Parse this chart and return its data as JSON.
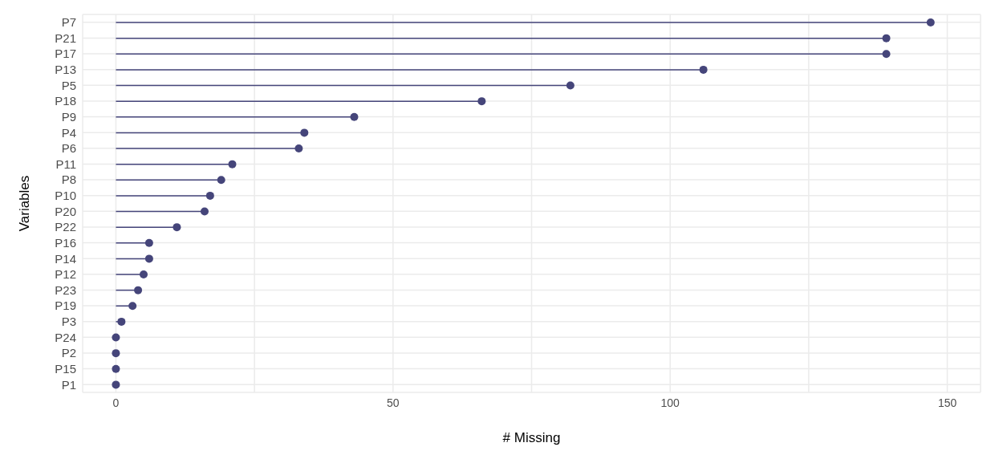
{
  "chart_data": {
    "type": "lollipop",
    "orientation": "horizontal",
    "xlabel": "# Missing",
    "ylabel": "Variables",
    "categories": [
      "P7",
      "P21",
      "P17",
      "P13",
      "P5",
      "P18",
      "P9",
      "P4",
      "P6",
      "P11",
      "P8",
      "P10",
      "P20",
      "P22",
      "P16",
      "P14",
      "P12",
      "P23",
      "P19",
      "P3",
      "P24",
      "P2",
      "P15",
      "P1"
    ],
    "values": [
      147,
      139,
      139,
      106,
      82,
      66,
      43,
      34,
      33,
      21,
      19,
      17,
      16,
      11,
      6,
      6,
      5,
      4,
      3,
      1,
      0,
      0,
      0,
      0
    ],
    "color": "#45457a",
    "xlim": [
      -6,
      156
    ],
    "xticks": [
      0,
      {
        "value": 25,
        "label": null
      },
      50,
      {
        "value": 75,
        "label": null
      },
      100,
      {
        "value": 125,
        "label": null
      },
      150
    ],
    "grid": true,
    "marker": "circle"
  }
}
